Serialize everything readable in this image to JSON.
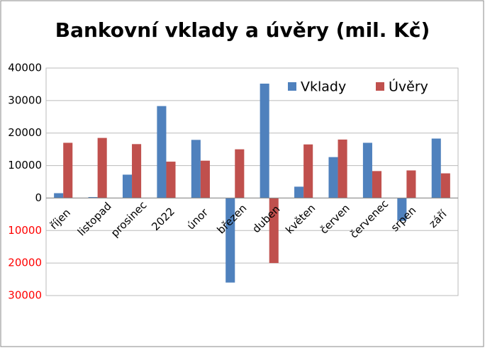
{
  "chart_data": {
    "type": "bar",
    "title": "Bankovní vklady a úvěry (mil. Kč)",
    "categories": [
      "říjen",
      "listopad",
      "prosinec",
      "2022",
      "únor",
      "březen",
      "duben",
      "květen",
      "červen",
      "červenec",
      "srpen",
      "září"
    ],
    "series": [
      {
        "name": "Vklady",
        "color": "#4f81bd",
        "values": [
          1500,
          300,
          7200,
          28300,
          17900,
          -26000,
          35200,
          3500,
          12600,
          17000,
          -7000,
          18300
        ]
      },
      {
        "name": "Úvěry",
        "color": "#c0504d",
        "values": [
          17000,
          18500,
          16600,
          11200,
          11500,
          15000,
          -20000,
          16500,
          18000,
          8300,
          8500,
          7600
        ]
      }
    ],
    "ylim": [
      -30000,
      40000
    ],
    "yticks": [
      {
        "value": -30000,
        "label": "30000"
      },
      {
        "value": -20000,
        "label": "20000"
      },
      {
        "value": -10000,
        "label": "10000"
      },
      0,
      10000,
      20000,
      30000,
      40000
    ],
    "negative_tick_color": "#ff0000",
    "grid": true,
    "legend": "top-right"
  }
}
